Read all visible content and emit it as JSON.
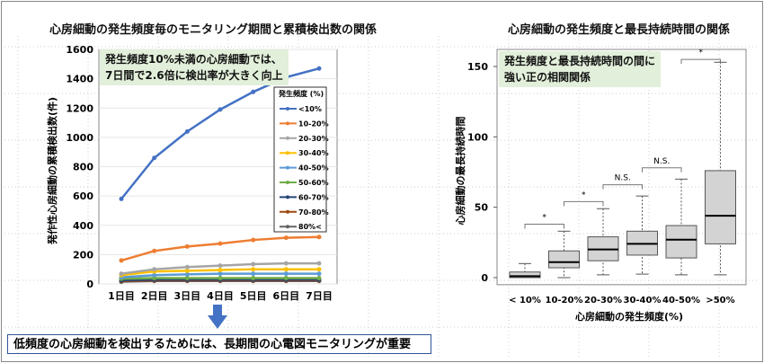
{
  "bottom_text": "低頻度の心房細動を検出するためには、長期間の心電図モニタリングが重要",
  "chart_data": [
    {
      "type": "line",
      "title": "心房細動の発生頻度毎のモニタリング期間と累積検出数の関係",
      "ylabel": "発作性心房細動の累積検出数(件)",
      "xlabel": "",
      "categories": [
        "1日目",
        "2日目",
        "3日目",
        "4日目",
        "5日目",
        "6日目",
        "7日目"
      ],
      "ylim": [
        0,
        1600
      ],
      "yticks": [
        0,
        200,
        400,
        600,
        800,
        1000,
        1200,
        1400,
        1600
      ],
      "grid": true,
      "legend_title": "発生頻度 (%)",
      "legend_position": "right",
      "annotation": [
        "発生頻度10%未満の心房細動では、",
        "7日間で2.6倍に検出率が大きく向上"
      ],
      "series": [
        {
          "name": "<10%",
          "color": "#4472c4",
          "values": [
            580,
            860,
            1040,
            1190,
            1310,
            1410,
            1470
          ]
        },
        {
          "name": "10-20%",
          "color": "#ed7d31",
          "values": [
            160,
            225,
            255,
            275,
            300,
            315,
            320
          ]
        },
        {
          "name": "20-30%",
          "color": "#a5a5a5",
          "values": [
            70,
            100,
            115,
            125,
            135,
            140,
            140
          ]
        },
        {
          "name": "30-40%",
          "color": "#ffc000",
          "values": [
            60,
            85,
            90,
            95,
            100,
            100,
            100
          ]
        },
        {
          "name": "40-50%",
          "color": "#5b9bd5",
          "values": [
            45,
            60,
            65,
            70,
            70,
            70,
            70
          ]
        },
        {
          "name": "50-60%",
          "color": "#70ad47",
          "values": [
            35,
            40,
            40,
            40,
            40,
            40,
            40
          ]
        },
        {
          "name": "60-70%",
          "color": "#264478",
          "values": [
            25,
            30,
            30,
            30,
            30,
            30,
            30
          ]
        },
        {
          "name": "70-80%",
          "color": "#9e480e",
          "values": [
            20,
            25,
            25,
            25,
            25,
            25,
            25
          ]
        },
        {
          "name": "80%<",
          "color": "#636363",
          "values": [
            15,
            20,
            20,
            20,
            20,
            20,
            20
          ]
        }
      ]
    },
    {
      "type": "box",
      "title": "心房細動の発生頻度と最長持続時間の関係",
      "ylabel": "心房細動の最長持続時間",
      "xlabel": "心房細動の発生頻度(%)",
      "ylim": [
        -5,
        160
      ],
      "yticks": [
        0,
        50,
        100,
        150
      ],
      "annotation": [
        "発生頻度と最長持続時間の間に",
        "強い正の相関関係"
      ],
      "categories": [
        "< 10%",
        "10-20%",
        "20-30%",
        "30-40%",
        "40-50%",
        ">50%"
      ],
      "boxes": [
        {
          "min": 0,
          "q1": 0,
          "median": 1,
          "q3": 4,
          "max": 10
        },
        {
          "min": 0,
          "q1": 7,
          "median": 11,
          "q3": 19,
          "max": 33
        },
        {
          "min": 2,
          "q1": 12,
          "median": 20,
          "q3": 29,
          "max": 49
        },
        {
          "min": 2.5,
          "q1": 16,
          "median": 24,
          "q3": 33,
          "max": 58
        },
        {
          "min": 2,
          "q1": 14,
          "median": 27,
          "q3": 37,
          "max": 70
        },
        {
          "min": 2,
          "q1": 24,
          "median": 44,
          "q3": 76,
          "max": 153
        }
      ],
      "comparisons": [
        {
          "from": 0,
          "to": 1,
          "label": "*",
          "level": 38
        },
        {
          "from": 1,
          "to": 2,
          "label": "*",
          "level": 54
        },
        {
          "from": 2,
          "to": 3,
          "label": "N.S.",
          "level": 66
        },
        {
          "from": 3,
          "to": 4,
          "label": "N.S.",
          "level": 78
        },
        {
          "from": 4,
          "to": 5,
          "label": "*",
          "level": 155
        }
      ]
    }
  ]
}
